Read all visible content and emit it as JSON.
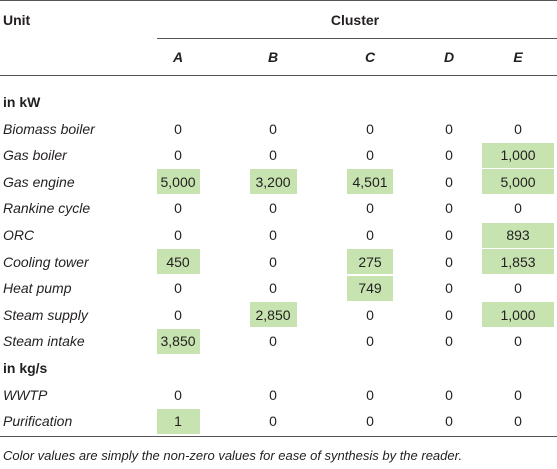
{
  "header": {
    "unit": "Unit",
    "cluster": "Cluster",
    "columns": [
      "A",
      "B",
      "C",
      "D",
      "E"
    ]
  },
  "sections": [
    {
      "title": "in kW",
      "rows": [
        {
          "label": "Biomass boiler",
          "values": [
            "0",
            "0",
            "0",
            "0",
            "0"
          ]
        },
        {
          "label": "Gas boiler",
          "values": [
            "0",
            "0",
            "0",
            "0",
            "1,000"
          ]
        },
        {
          "label": "Gas engine",
          "values": [
            "5,000",
            "3,200",
            "4,501",
            "0",
            "5,000"
          ]
        },
        {
          "label": "Rankine cycle",
          "values": [
            "0",
            "0",
            "0",
            "0",
            "0"
          ]
        },
        {
          "label": "ORC",
          "values": [
            "0",
            "0",
            "0",
            "0",
            "893"
          ]
        },
        {
          "label": "Cooling tower",
          "values": [
            "450",
            "0",
            "275",
            "0",
            "1,853"
          ]
        },
        {
          "label": "Heat pump",
          "values": [
            "0",
            "0",
            "749",
            "0",
            "0"
          ]
        },
        {
          "label": "Steam supply",
          "values": [
            "0",
            "2,850",
            "0",
            "0",
            "1,000"
          ]
        },
        {
          "label": "Steam intake",
          "values": [
            "3,850",
            "0",
            "0",
            "0",
            "0"
          ]
        }
      ]
    },
    {
      "title": "in kg/s",
      "rows": [
        {
          "label": "WWTP",
          "values": [
            "0",
            "0",
            "0",
            "0",
            "0"
          ]
        },
        {
          "label": "Purification",
          "values": [
            "1",
            "0",
            "0",
            "0",
            "0"
          ]
        }
      ]
    }
  ],
  "footnote": "Color values are simply the non-zero values for ease of synthesis by the reader."
}
